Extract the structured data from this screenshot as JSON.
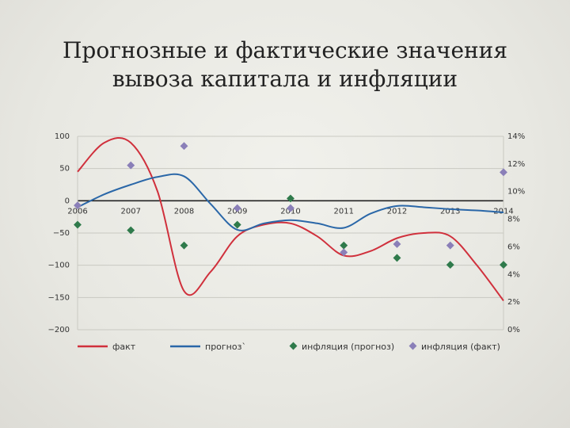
{
  "slide": {
    "title_line1": "Прогнозные и фактические значения",
    "title_line2": "вывоза капитала и инфляции"
  },
  "chart_data": {
    "type": "line",
    "categories": [
      "2006",
      "2007",
      "2008",
      "2009",
      "2010",
      "2011",
      "2012",
      "2013",
      "2014"
    ],
    "x_labels": [
      "2006",
      "2007",
      "2008",
      "2009",
      "2010",
      "2011",
      "2012",
      "2013",
      "2014"
    ],
    "y_left": {
      "ticks": [
        "100",
        "50",
        "0",
        "−50",
        "−100",
        "−150",
        "−200"
      ],
      "tick_values": [
        100,
        50,
        0,
        -50,
        -100,
        -150,
        -200
      ],
      "ylim": [
        -200,
        100
      ]
    },
    "y_right": {
      "ticks": [
        "14%",
        "12%",
        "10%",
        "8%",
        "6%",
        "4%",
        "2%",
        "0%"
      ],
      "tick_values": [
        14,
        12,
        10,
        8,
        6,
        4,
        2,
        0
      ],
      "ylim": [
        0,
        14
      ]
    },
    "grid": true,
    "legend_position": "bottom",
    "series": [
      {
        "name": "факт",
        "axis": "left",
        "style": "line",
        "color": "#d0303c",
        "x": [
          2006,
          2006.5,
          2007,
          2007.5,
          2008,
          2008.5,
          2009,
          2009.5,
          2010,
          2010.5,
          2011,
          2011.5,
          2012,
          2012.5,
          2013,
          2013.5,
          2014
        ],
        "values": [
          45,
          90,
          90,
          15,
          -140,
          -110,
          -55,
          -37,
          -35,
          -55,
          -85,
          -78,
          -58,
          -50,
          -55,
          -100,
          -155
        ]
      },
      {
        "name": "прогноз",
        "axis": "left",
        "style": "line",
        "color": "#2a67a8",
        "x": [
          2006,
          2006.5,
          2007,
          2007.5,
          2008,
          2008.5,
          2009,
          2009.5,
          2010,
          2010.5,
          2011,
          2011.5,
          2012,
          2012.5,
          2013,
          2013.5,
          2014
        ],
        "values": [
          -10,
          10,
          25,
          37,
          38,
          -5,
          -45,
          -35,
          -30,
          -35,
          -42,
          -20,
          -8,
          -10,
          -13,
          -15,
          -18
        ]
      },
      {
        "name": "инфляция (прогноз)",
        "axis": "right",
        "style": "diamond",
        "color": "#2f7a4b",
        "x": [
          2006,
          2007,
          2008,
          2009,
          2010,
          2011,
          2012,
          2013,
          2014
        ],
        "values": [
          7.6,
          7.2,
          6.1,
          7.6,
          9.5,
          6.1,
          5.2,
          4.7,
          4.7
        ]
      },
      {
        "name": "инфляция (факт)",
        "axis": "right",
        "style": "diamond",
        "color": "#8a7fb8",
        "x": [
          2006,
          2007,
          2008,
          2009,
          2010,
          2011,
          2012,
          2013,
          2014
        ],
        "values": [
          9.0,
          11.9,
          13.3,
          8.8,
          8.8,
          5.6,
          6.2,
          6.1,
          11.4
        ]
      }
    ]
  },
  "legend": {
    "fact": "факт",
    "forecast": "прогноз`",
    "infl_forecast": "инфляция (прогноз)",
    "infl_fact": "инфляция (факт)"
  }
}
